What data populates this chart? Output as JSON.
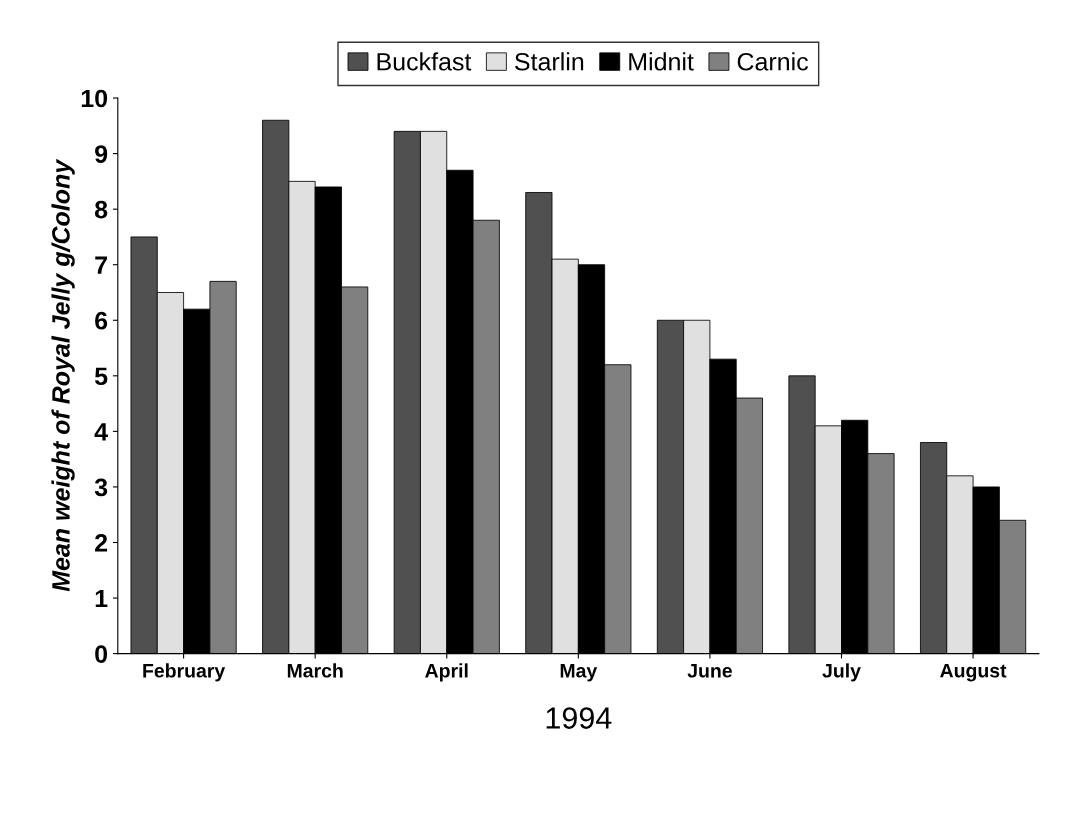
{
  "chart_data": {
    "type": "bar",
    "xlabel": "1994",
    "ylabel": "Mean weight of Royal Jelly g/Colony",
    "categories": [
      "February",
      "March",
      "April",
      "May",
      "June",
      "July",
      "August"
    ],
    "series": [
      {
        "name": "Buckfast",
        "color": "#505050",
        "values": [
          7.5,
          9.6,
          9.4,
          8.3,
          6.0,
          5.0,
          3.8
        ]
      },
      {
        "name": "Starlin",
        "color": "#e0e0e0",
        "values": [
          6.5,
          8.5,
          9.4,
          7.1,
          6.0,
          4.1,
          3.2
        ]
      },
      {
        "name": "Midnit",
        "color": "#000000",
        "values": [
          6.2,
          8.4,
          8.7,
          7.0,
          5.3,
          4.2,
          3.0
        ]
      },
      {
        "name": "Carnic",
        "color": "#808080",
        "values": [
          6.7,
          6.6,
          7.8,
          5.2,
          4.6,
          3.6,
          2.4
        ]
      }
    ],
    "ylim": [
      0,
      10
    ],
    "yticks": [
      0,
      1,
      2,
      3,
      4,
      5,
      6,
      7,
      8,
      9,
      10
    ],
    "grid": false,
    "legend": "top"
  }
}
